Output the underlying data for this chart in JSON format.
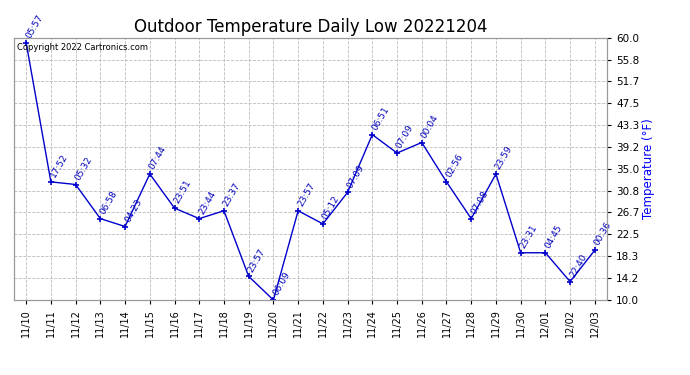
{
  "title": "Outdoor Temperature Daily Low 20221204",
  "ylabel": "Temperature (°F)",
  "copyright_text": "Copyright 2022 Cartronics.com",
  "x_labels": [
    "11/10",
    "11/11",
    "11/12",
    "11/13",
    "11/14",
    "11/15",
    "11/16",
    "11/17",
    "11/18",
    "11/19",
    "11/20",
    "11/21",
    "11/22",
    "11/23",
    "11/24",
    "11/25",
    "11/26",
    "11/27",
    "11/28",
    "11/29",
    "11/30",
    "12/01",
    "12/02",
    "12/03"
  ],
  "y_values": [
    59.0,
    32.5,
    32.0,
    25.5,
    24.0,
    34.0,
    27.5,
    25.5,
    27.0,
    14.5,
    10.0,
    27.0,
    24.5,
    30.5,
    41.5,
    38.0,
    40.0,
    32.5,
    25.5,
    34.0,
    19.0,
    19.0,
    13.5,
    19.5
  ],
  "time_labels": [
    "05:57",
    "17:52",
    "05:32",
    "06:58",
    "04:23",
    "07:44",
    "23:51",
    "23:44",
    "23:37",
    "23:57",
    "06:09",
    "23:57",
    "05:12",
    "07:09",
    "06:51",
    "07:09",
    "00:04",
    "02:56",
    "07:08",
    "23:59",
    "23:31",
    "04:45",
    "22:40",
    "00:36"
  ],
  "line_color": "#0000cc",
  "marker_color": "#0000cc",
  "text_color": "#0000bb",
  "ylabel_color": "#0000ff",
  "title_color": "#000000",
  "background_color": "#ffffff",
  "grid_color": "#bbbbbb",
  "ylim": [
    10.0,
    60.0
  ],
  "yticks": [
    10.0,
    14.2,
    18.3,
    22.5,
    26.7,
    30.8,
    35.0,
    39.2,
    43.3,
    47.5,
    51.7,
    55.8,
    60.0
  ],
  "annotation_fontsize": 6.5,
  "title_fontsize": 12
}
